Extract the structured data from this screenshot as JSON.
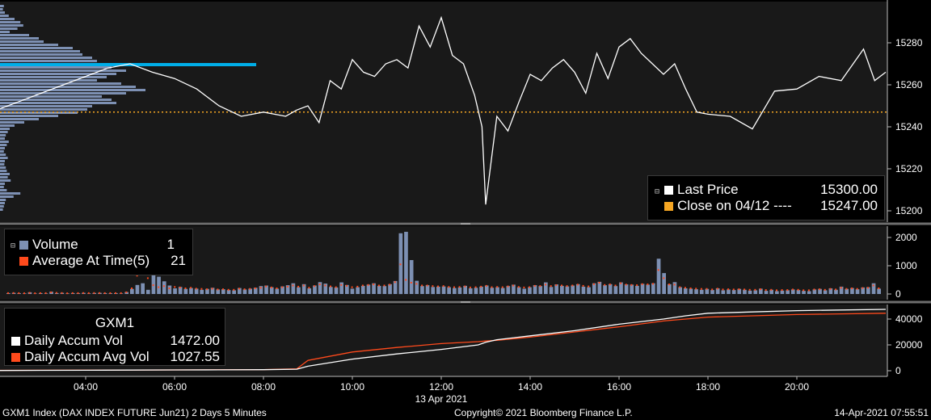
{
  "colors": {
    "background": "#000000",
    "panel": "#191919",
    "price_line": "#ffffff",
    "prev_close": "#f5a623",
    "volume_bar": "#7d90b3",
    "average_marker": "#ff4a1c",
    "highlight_bar": "#00aee8",
    "accum_vol": "#ffffff",
    "accum_avg": "#ff4a1c",
    "divider": "#6e6e6e"
  },
  "price_legend": {
    "last_price_label": "Last Price",
    "last_price_value": "15300.00",
    "close_label": "Close on 04/12 ----",
    "close_value": "15247.00"
  },
  "volume_legend": {
    "volume_label": "Volume",
    "volume_value": "1",
    "avg_label": "Average At Time(5)",
    "avg_value": "21"
  },
  "accum_legend": {
    "title": "GXM1",
    "daily_label": "Daily Accum Vol",
    "daily_value": "1472.00",
    "avg_label": "Daily Accum Avg Vol",
    "avg_value": "1027.55"
  },
  "footer": {
    "left": "GXM1 Index (DAX INDEX FUTURE  Jun21) 2 Days 5 Minutes",
    "center": "Copyright© 2021 Bloomberg Finance L.P.",
    "right": "14-Apr-2021 07:55:51"
  },
  "chart_data": [
    {
      "type": "line",
      "panel": "price",
      "x": [
        "02:00",
        "02:30",
        "03:00",
        "03:30",
        "04:00",
        "04:30",
        "05:00",
        "05:30",
        "06:00",
        "06:30",
        "07:00",
        "07:30",
        "08:00",
        "08:30",
        "08:45",
        "09:00",
        "09:15",
        "09:30",
        "09:45",
        "10:00",
        "10:15",
        "10:30",
        "10:45",
        "11:00",
        "11:15",
        "11:30",
        "11:45",
        "12:00",
        "12:15",
        "12:30",
        "12:45",
        "12:55",
        "13:00",
        "13:15",
        "13:30",
        "13:45",
        "14:00",
        "14:15",
        "14:30",
        "14:45",
        "15:00",
        "15:15",
        "15:30",
        "15:45",
        "16:00",
        "16:15",
        "16:30",
        "16:45",
        "17:00",
        "17:15",
        "17:30",
        "17:45",
        "18:00",
        "18:30",
        "19:00",
        "19:30",
        "20:00",
        "20:30",
        "21:00",
        "21:30",
        "21:45",
        "22:00"
      ],
      "series": [
        {
          "values": [
            15248,
            15252,
            15256,
            15260,
            15264,
            15268,
            15270,
            15266,
            15263,
            15258,
            15250,
            15245,
            15247,
            15245,
            15248,
            15250,
            15242,
            15262,
            15258,
            15272,
            15266,
            15264,
            15270,
            15272,
            15268,
            15288,
            15278,
            15292,
            15274,
            15270,
            15255,
            15240,
            15203,
            15245,
            15238,
            15252,
            15265,
            15262,
            15268,
            15272,
            15266,
            15256,
            15275,
            15263,
            15278,
            15282,
            15275,
            15270,
            15265,
            15270,
            15258,
            15247,
            15246,
            15245,
            15239,
            15257,
            15258,
            15264,
            15262,
            15277,
            15262,
            15266
          ]
        }
      ],
      "reference_lines": [
        {
          "name": "Close on 04/12",
          "value": 15247
        }
      ],
      "ylim": [
        15195,
        15300
      ],
      "yticks": [
        15200,
        15220,
        15240,
        15260,
        15280
      ],
      "volume_profile": "horizontal volume-at-price histogram on left edge",
      "grid": false
    },
    {
      "type": "bar",
      "panel": "volume",
      "series": [
        {
          "name": "Volume",
          "values": [
            30,
            40,
            25,
            20,
            60,
            15,
            30,
            20,
            80,
            30,
            40,
            20,
            30,
            25,
            40,
            20,
            35,
            40,
            30,
            25,
            30,
            20,
            70,
            180,
            320,
            380,
            150,
            990,
            610,
            450,
            300,
            200,
            250,
            180,
            210,
            190,
            150,
            180,
            220,
            160,
            170,
            140,
            130,
            210,
            160,
            190,
            220,
            280,
            300,
            240,
            190,
            270,
            310,
            380,
            240,
            350,
            200,
            300,
            420,
            370,
            250,
            230,
            410,
            320,
            190,
            240,
            290,
            330,
            380,
            290,
            280,
            350,
            460,
            2150,
            2200,
            1200,
            470,
            280,
            310,
            250,
            260,
            270,
            240,
            210,
            230,
            290,
            200,
            220,
            260,
            300,
            220,
            240,
            210,
            280,
            330,
            240,
            190,
            240,
            310,
            280,
            410,
            250,
            340,
            290,
            270,
            300,
            350,
            260,
            240,
            380,
            430,
            310,
            350,
            280,
            410,
            340,
            330,
            290,
            360,
            330,
            380,
            1250,
            740,
            350,
            420,
            240,
            200,
            190,
            170,
            150,
            180,
            140,
            200,
            130,
            160,
            140,
            180,
            150,
            120,
            130,
            190,
            110,
            150,
            100,
            120,
            130,
            160,
            140,
            110,
            100,
            160,
            180,
            130,
            200,
            150,
            260,
            180,
            210,
            170,
            230,
            240,
            380,
            190
          ]
        },
        {
          "name": "Average At Time(5)",
          "values": [
            30,
            35,
            30,
            25,
            40,
            25,
            30,
            30,
            60,
            40,
            35,
            25,
            30,
            30,
            35,
            30,
            35,
            35,
            30,
            30,
            30,
            30,
            60,
            200,
            650,
            1480,
            560,
            310,
            240,
            280,
            200,
            250,
            230,
            200,
            220,
            190,
            180,
            170,
            190,
            160,
            170,
            150,
            150,
            190,
            170,
            180,
            200,
            220,
            270,
            230,
            200,
            240,
            260,
            300,
            260,
            300,
            220,
            280,
            340,
            300,
            270,
            240,
            320,
            290,
            240,
            260,
            300,
            320,
            340,
            300,
            300,
            330,
            420,
            1050,
            500,
            400,
            360,
            300,
            300,
            280,
            270,
            280,
            250,
            240,
            250,
            270,
            230,
            240,
            260,
            290,
            240,
            250,
            240,
            270,
            300,
            250,
            230,
            240,
            290,
            280,
            330,
            280,
            310,
            300,
            280,
            300,
            330,
            290,
            270,
            350,
            400,
            320,
            340,
            300,
            380,
            330,
            320,
            310,
            350,
            340,
            360,
            850,
            560,
            340,
            330,
            240,
            220,
            200,
            190,
            180,
            180,
            160,
            190,
            160,
            170,
            160,
            170,
            160,
            150,
            150,
            170,
            140,
            150,
            130,
            140,
            140,
            160,
            150,
            130,
            130,
            160,
            170,
            150,
            180,
            160,
            220,
            180,
            200,
            180,
            210,
            220,
            300,
            200
          ]
        }
      ],
      "ylim": [
        0,
        2300
      ],
      "yticks": [
        0,
        1000,
        2000
      ],
      "grid": false
    },
    {
      "type": "line",
      "panel": "accumulation",
      "x": [
        "01:00",
        "02:00",
        "03:00",
        "04:00",
        "05:00",
        "06:00",
        "07:00",
        "08:00",
        "08:45",
        "09:00",
        "10:00",
        "11:00",
        "12:00",
        "12:50",
        "13:00",
        "13:15",
        "14:00",
        "15:00",
        "16:00",
        "17:00",
        "17:30",
        "18:00",
        "19:00",
        "20:00",
        "21:00",
        "22:00"
      ],
      "series": [
        {
          "name": "Daily Accum Vol",
          "values": [
            0,
            200,
            300,
            400,
            500,
            600,
            700,
            800,
            1200,
            3500,
            9000,
            13000,
            16500,
            20000,
            22000,
            24000,
            27000,
            31000,
            36000,
            40000,
            42500,
            44500,
            45500,
            46500,
            47000,
            47500
          ]
        },
        {
          "name": "Daily Accum Avg Vol",
          "values": [
            0,
            250,
            350,
            450,
            550,
            650,
            750,
            900,
            1500,
            8000,
            14500,
            18000,
            21000,
            22500,
            23000,
            23500,
            26000,
            30000,
            34000,
            38500,
            40000,
            41500,
            42500,
            43500,
            44000,
            44500
          ]
        }
      ],
      "ylim": [
        -3000,
        50000
      ],
      "yticks": [
        0,
        20000,
        40000
      ],
      "grid": false
    }
  ],
  "x_axis": {
    "tick_labels": [
      "04:00",
      "06:00",
      "08:00",
      "10:00",
      "12:00",
      "14:00",
      "16:00",
      "18:00",
      "20:00"
    ],
    "date_label": "13 Apr 2021"
  }
}
